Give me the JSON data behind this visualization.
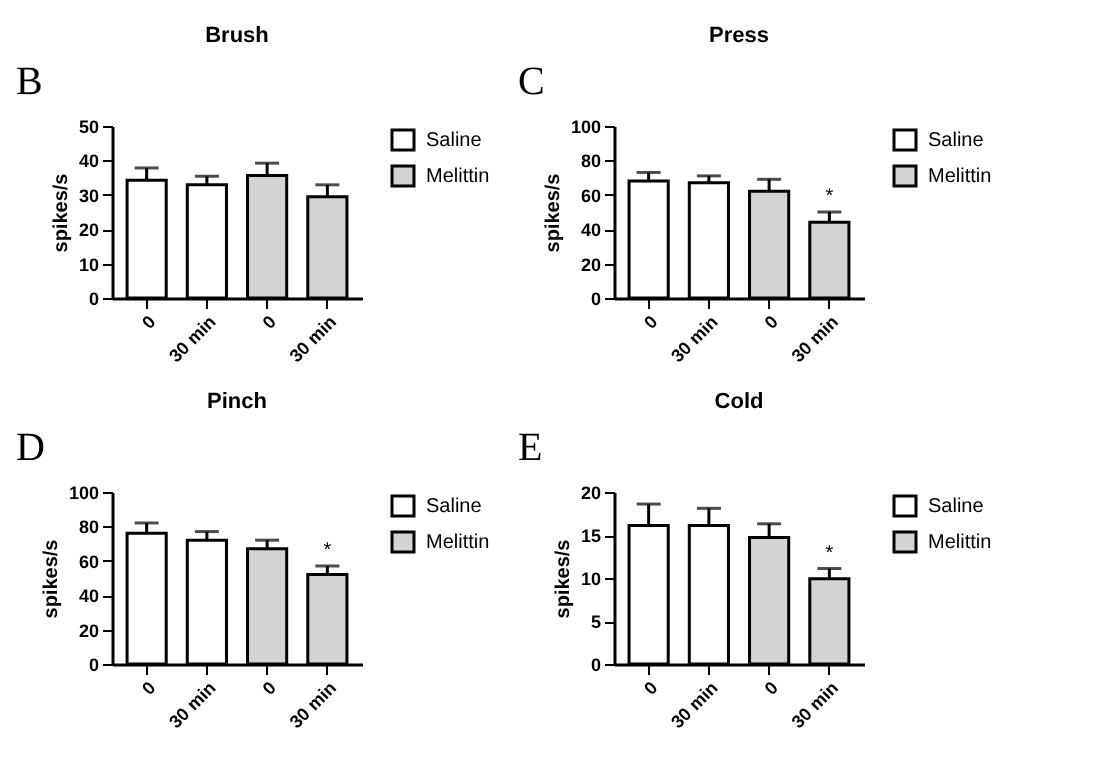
{
  "chart_data": [
    {
      "type": "bar",
      "title": "Brush",
      "ylabel": "spikes/s",
      "categories": [
        "0",
        "30 min",
        "0",
        "30 min"
      ],
      "ylim": [
        0,
        50
      ],
      "yticks": [
        0,
        10,
        20,
        30,
        40,
        50
      ],
      "grid": false,
      "legend": "top right",
      "annotations": [
        "B"
      ],
      "series": [
        {
          "name": "Saline",
          "color": "#ffffff",
          "values": [
            34.2,
            32.9,
            null,
            null
          ],
          "errors": [
            [
              34.2,
              37.8
            ],
            [
              32.9,
              35.4
            ],
            null,
            null
          ]
        },
        {
          "name": "Melittin",
          "color": "#d3d3d3",
          "values": [
            null,
            null,
            35.6,
            29.4
          ],
          "errors": [
            null,
            null,
            [
              35.6,
              39.2
            ],
            [
              29.4,
              32.9
            ]
          ]
        }
      ]
    },
    {
      "type": "bar",
      "title": "Press",
      "ylabel": "spikes/s",
      "categories": [
        "0",
        "30 min",
        "0",
        "30 min"
      ],
      "ylim": [
        0,
        100
      ],
      "yticks": [
        0,
        20,
        40,
        60,
        80,
        100
      ],
      "grid": false,
      "legend": "top right",
      "annotations": [
        "C",
        "*"
      ],
      "series": [
        {
          "name": "Saline",
          "color": "#ffffff",
          "values": [
            68,
            67,
            null,
            null
          ],
          "errors": [
            [
              68,
              73
            ],
            [
              67,
              71
            ],
            null,
            null
          ]
        },
        {
          "name": "Melittin",
          "color": "#d3d3d3",
          "values": [
            null,
            null,
            62,
            44
          ],
          "errors": [
            null,
            null,
            [
              62,
              69
            ],
            [
              44,
              50
            ]
          ]
        }
      ]
    },
    {
      "type": "bar",
      "title": "Pinch",
      "ylabel": "spikes/s",
      "categories": [
        "0",
        "30 min",
        "0",
        "30 min"
      ],
      "ylim": [
        0,
        100
      ],
      "yticks": [
        0,
        20,
        40,
        60,
        80,
        100
      ],
      "grid": false,
      "legend": "top right",
      "annotations": [
        "D",
        "*"
      ],
      "series": [
        {
          "name": "Saline",
          "color": "#ffffff",
          "values": [
            76,
            72,
            null,
            null
          ],
          "errors": [
            [
              76,
              82
            ],
            [
              72,
              77
            ],
            null,
            null
          ]
        },
        {
          "name": "Melittin",
          "color": "#d3d3d3",
          "values": [
            null,
            null,
            67,
            52
          ],
          "errors": [
            null,
            null,
            [
              67,
              72
            ],
            [
              52,
              57
            ]
          ]
        }
      ]
    },
    {
      "type": "bar",
      "title": "Cold",
      "ylabel": "spikes/s",
      "categories": [
        "0",
        "30 min",
        "0",
        "30 min"
      ],
      "ylim": [
        0,
        20
      ],
      "yticks": [
        0,
        5,
        10,
        15,
        20
      ],
      "grid": false,
      "legend": "top right",
      "annotations": [
        "E",
        "*"
      ],
      "series": [
        {
          "name": "Saline",
          "color": "#ffffff",
          "values": [
            16.1,
            16.1,
            null,
            null
          ],
          "errors": [
            [
              16.1,
              18.6
            ],
            [
              16.1,
              18.1
            ],
            null,
            null
          ]
        },
        {
          "name": "Melittin",
          "color": "#d3d3d3",
          "values": [
            null,
            null,
            14.7,
            9.9
          ],
          "errors": [
            null,
            null,
            [
              14.7,
              16.3
            ],
            [
              9.9,
              11.1
            ]
          ]
        }
      ]
    }
  ]
}
